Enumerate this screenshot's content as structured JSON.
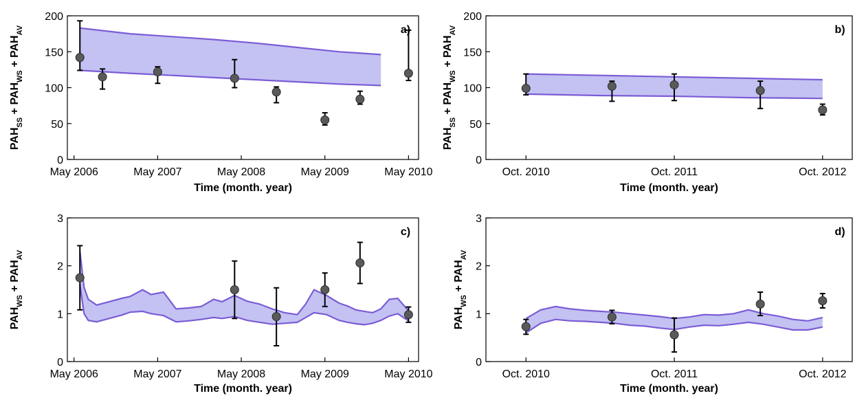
{
  "chart_data": [
    {
      "panel": "a)",
      "type": "area",
      "xlabel": "Time (month. year)",
      "ylabel": [
        "PAH",
        "SS",
        " + PAH",
        "WS",
        " + PAH",
        "AV"
      ],
      "ylim": [
        0,
        200
      ],
      "yticks": [
        0,
        50,
        100,
        150,
        200
      ],
      "xlim": [
        2006.25,
        2010.45
      ],
      "xticks": [
        {
          "value": 2006.33,
          "label": "May 2006"
        },
        {
          "value": 2007.33,
          "label": "May 2007"
        },
        {
          "value": 2008.33,
          "label": "May 2008"
        },
        {
          "value": 2009.33,
          "label": "May 2009"
        },
        {
          "value": 2010.33,
          "label": "May 2010"
        }
      ],
      "band": {
        "x": [
          2006.4,
          2007.0,
          2007.5,
          2008.0,
          2008.5,
          2009.0,
          2009.5,
          2010.0
        ],
        "upper": [
          183,
          175,
          171,
          167,
          162,
          156,
          150,
          146
        ],
        "lower": [
          124,
          120,
          117,
          114,
          111,
          108,
          105,
          103
        ]
      },
      "points": [
        {
          "x": 2006.4,
          "y": 142,
          "lo": 124,
          "hi": 193
        },
        {
          "x": 2006.67,
          "y": 115,
          "lo": 98,
          "hi": 126
        },
        {
          "x": 2007.33,
          "y": 122,
          "lo": 106,
          "hi": 129
        },
        {
          "x": 2008.25,
          "y": 113,
          "lo": 100,
          "hi": 139
        },
        {
          "x": 2008.75,
          "y": 94,
          "lo": 79,
          "hi": 101
        },
        {
          "x": 2009.33,
          "y": 55,
          "lo": 48,
          "hi": 65
        },
        {
          "x": 2009.75,
          "y": 84,
          "lo": 77,
          "hi": 95
        },
        {
          "x": 2010.33,
          "y": 120,
          "lo": 110,
          "hi": 180
        }
      ]
    },
    {
      "panel": "b)",
      "type": "area",
      "xlabel": "Time (month. year)",
      "ylabel": [
        "PAH",
        "SS",
        " + PAH",
        "WS",
        " + PAH",
        "AV"
      ],
      "ylim": [
        0,
        200
      ],
      "yticks": [
        0,
        50,
        100,
        150,
        200
      ],
      "xlim": [
        2010.48,
        2012.95
      ],
      "xticks": [
        {
          "value": 2010.75,
          "label": "Oct. 2010"
        },
        {
          "value": 2011.75,
          "label": "Oct. 2011"
        },
        {
          "value": 2012.75,
          "label": "Oct. 2012"
        }
      ],
      "band": {
        "x": [
          2010.75,
          2011.25,
          2011.75,
          2012.25,
          2012.75
        ],
        "upper": [
          119,
          117,
          115,
          113,
          111
        ],
        "lower": [
          91,
          89,
          88,
          86,
          85
        ]
      },
      "points": [
        {
          "x": 2010.75,
          "y": 99,
          "lo": 90,
          "hi": 119
        },
        {
          "x": 2011.33,
          "y": 102,
          "lo": 81,
          "hi": 109
        },
        {
          "x": 2011.75,
          "y": 104,
          "lo": 82,
          "hi": 119
        },
        {
          "x": 2012.33,
          "y": 96,
          "lo": 71,
          "hi": 109
        },
        {
          "x": 2012.75,
          "y": 69,
          "lo": 62,
          "hi": 77
        }
      ]
    },
    {
      "panel": "c)",
      "type": "area",
      "xlabel": "Time (month. year)",
      "ylabel": [
        "PAH",
        "WS",
        " + PAH",
        "AV"
      ],
      "ylim": [
        0,
        3
      ],
      "yticks": [
        0,
        1,
        2,
        3
      ],
      "xlim": [
        2006.25,
        2010.45
      ],
      "xticks": [
        {
          "value": 2006.33,
          "label": "May 2006"
        },
        {
          "value": 2007.33,
          "label": "May 2007"
        },
        {
          "value": 2008.33,
          "label": "May 2008"
        },
        {
          "value": 2009.33,
          "label": "May 2009"
        },
        {
          "value": 2010.33,
          "label": "May 2010"
        }
      ],
      "band": {
        "x": [
          2006.4,
          2006.45,
          2006.5,
          2006.6,
          2006.75,
          2006.9,
          2007.0,
          2007.15,
          2007.25,
          2007.4,
          2007.55,
          2007.7,
          2007.85,
          2008.0,
          2008.1,
          2008.25,
          2008.4,
          2008.55,
          2008.7,
          2008.85,
          2009.0,
          2009.1,
          2009.2,
          2009.35,
          2009.5,
          2009.6,
          2009.7,
          2009.8,
          2009.9,
          2010.0,
          2010.1,
          2010.2,
          2010.33
        ],
        "upper": [
          2.3,
          1.55,
          1.3,
          1.18,
          1.25,
          1.32,
          1.36,
          1.5,
          1.4,
          1.45,
          1.1,
          1.12,
          1.15,
          1.3,
          1.25,
          1.38,
          1.26,
          1.2,
          1.1,
          1.02,
          0.98,
          1.2,
          1.5,
          1.38,
          1.22,
          1.16,
          1.08,
          1.05,
          1.02,
          1.1,
          1.3,
          1.32,
          1.06
        ],
        "lower": [
          1.6,
          1.0,
          0.86,
          0.83,
          0.9,
          0.97,
          1.03,
          1.05,
          1.0,
          0.96,
          0.83,
          0.85,
          0.88,
          0.92,
          0.9,
          0.94,
          0.86,
          0.82,
          0.78,
          0.8,
          0.82,
          0.92,
          1.02,
          0.98,
          0.86,
          0.82,
          0.79,
          0.77,
          0.8,
          0.86,
          0.95,
          1.0,
          0.85
        ]
      },
      "points": [
        {
          "x": 2006.4,
          "y": 1.75,
          "lo": 1.08,
          "hi": 2.42
        },
        {
          "x": 2008.25,
          "y": 1.5,
          "lo": 0.9,
          "hi": 2.1
        },
        {
          "x": 2008.75,
          "y": 0.94,
          "lo": 0.33,
          "hi": 1.54
        },
        {
          "x": 2009.33,
          "y": 1.5,
          "lo": 1.15,
          "hi": 1.85
        },
        {
          "x": 2009.75,
          "y": 2.06,
          "lo": 1.63,
          "hi": 2.49
        },
        {
          "x": 2010.33,
          "y": 0.98,
          "lo": 0.82,
          "hi": 1.14
        }
      ]
    },
    {
      "panel": "d)",
      "type": "area",
      "xlabel": "Time (month. year)",
      "ylabel": [
        "PAH",
        "WS",
        " + PAH",
        "AV"
      ],
      "ylim": [
        0,
        3
      ],
      "yticks": [
        0,
        1,
        2,
        3
      ],
      "xlim": [
        2010.48,
        2012.95
      ],
      "xticks": [
        {
          "value": 2010.75,
          "label": "Oct. 2010"
        },
        {
          "value": 2011.75,
          "label": "Oct. 2011"
        },
        {
          "value": 2012.75,
          "label": "Oct. 2012"
        }
      ],
      "band": {
        "x": [
          2010.75,
          2010.85,
          2010.95,
          2011.05,
          2011.15,
          2011.25,
          2011.35,
          2011.45,
          2011.55,
          2011.65,
          2011.75,
          2011.85,
          2011.95,
          2012.05,
          2012.15,
          2012.25,
          2012.35,
          2012.45,
          2012.55,
          2012.65,
          2012.75
        ],
        "upper": [
          0.9,
          1.08,
          1.15,
          1.1,
          1.07,
          1.05,
          1.03,
          1.0,
          0.97,
          0.94,
          0.9,
          0.93,
          0.98,
          0.97,
          1.0,
          1.08,
          1.0,
          0.95,
          0.88,
          0.85,
          0.92
        ],
        "lower": [
          0.6,
          0.8,
          0.88,
          0.85,
          0.84,
          0.82,
          0.8,
          0.76,
          0.74,
          0.7,
          0.67,
          0.72,
          0.76,
          0.75,
          0.78,
          0.82,
          0.78,
          0.72,
          0.66,
          0.66,
          0.72
        ]
      },
      "points": [
        {
          "x": 2010.75,
          "y": 0.73,
          "lo": 0.57,
          "hi": 0.88
        },
        {
          "x": 2011.33,
          "y": 0.93,
          "lo": 0.79,
          "hi": 1.07
        },
        {
          "x": 2011.75,
          "y": 0.56,
          "lo": 0.2,
          "hi": 0.91
        },
        {
          "x": 2012.33,
          "y": 1.2,
          "lo": 0.96,
          "hi": 1.45
        },
        {
          "x": 2012.75,
          "y": 1.27,
          "lo": 1.12,
          "hi": 1.42
        }
      ]
    }
  ],
  "colors": {
    "band_fill": "#c3c2f2",
    "band_line": "#7b5cd6",
    "marker_fill": "#5a5a5a",
    "marker_edge": "#2a2a2a",
    "axis": "#000000"
  }
}
